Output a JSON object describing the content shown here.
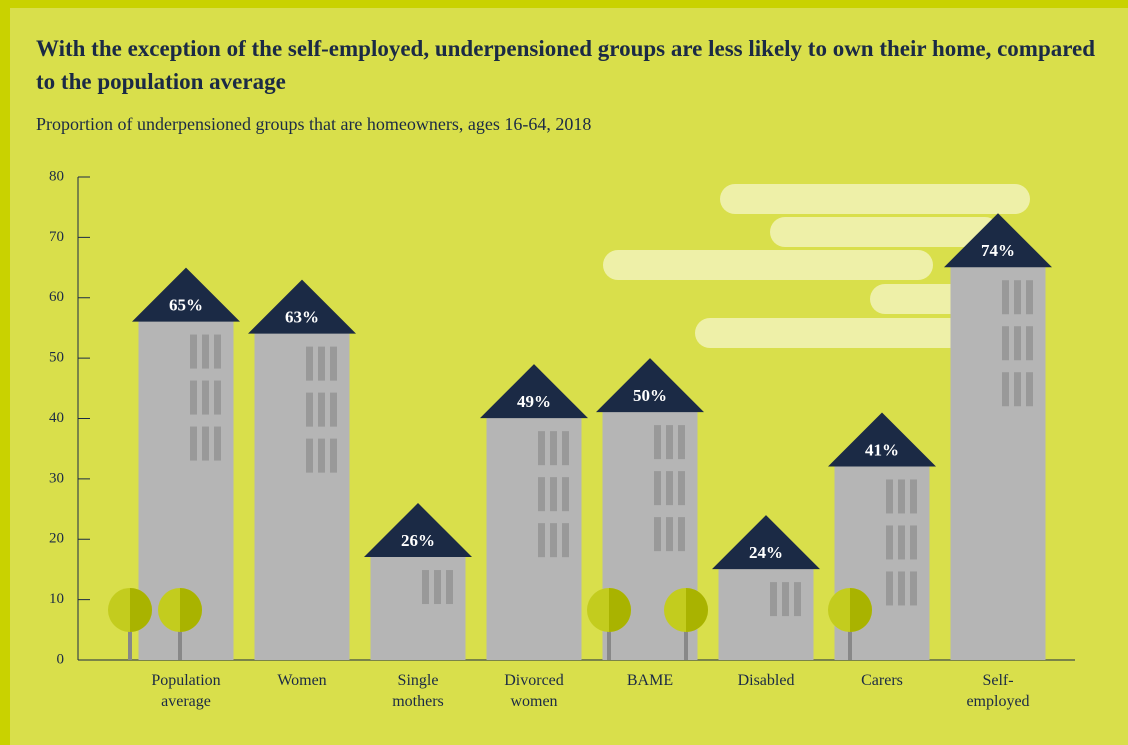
{
  "chart_data": {
    "type": "bar",
    "title": "With the exception of the self-employed, underpensioned groups are less likely to own their home, compared to the population average",
    "subtitle": "Proportion of underpensioned groups that are homeowners, ages 16-64, 2018",
    "categories": [
      "Population average",
      "Women",
      "Single mothers",
      "Divorced women",
      "BAME",
      "Disabled",
      "Carers",
      "Self-employed"
    ],
    "values": [
      65,
      63,
      26,
      49,
      50,
      24,
      41,
      74
    ],
    "value_labels": [
      "65%",
      "63%",
      "26%",
      "49%",
      "50%",
      "24%",
      "41%",
      "74%"
    ],
    "color": "#b5b5b5",
    "roof_color": "#1b2a45",
    "ylim": [
      0,
      80
    ],
    "yticks": [
      0,
      10,
      20,
      30,
      40,
      50,
      60,
      70,
      80
    ]
  }
}
